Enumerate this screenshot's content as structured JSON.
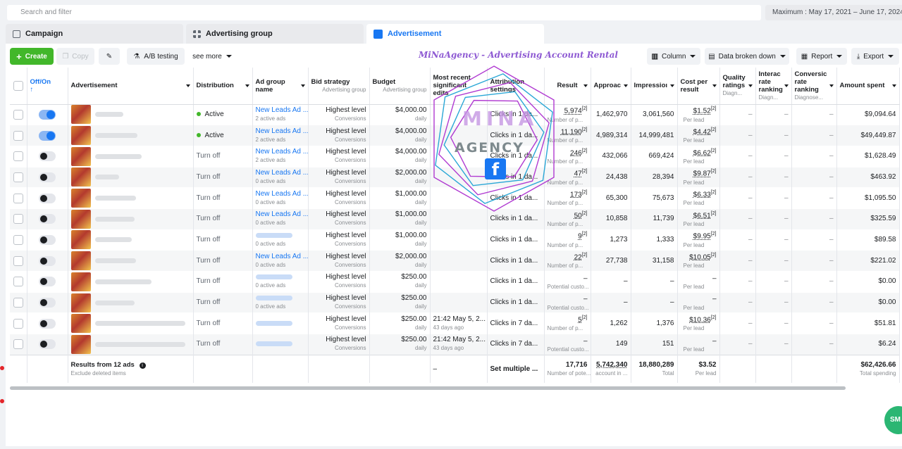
{
  "search": {
    "placeholder": "Search and filter"
  },
  "date_range": "Maximum : May 17, 2021 – June 17, 2024",
  "tabs": [
    {
      "label": "Campaign"
    },
    {
      "label": "Advertising group"
    },
    {
      "label": "Advertisement"
    }
  ],
  "toolbar": {
    "create": "Create",
    "copy": "Copy",
    "ab_testing": "A/B testing",
    "see_more": "see more",
    "brand": "MiNaAgency - Advertising Account Rental",
    "column": "Column",
    "breakdown": "Data broken down",
    "report": "Report",
    "export": "Export"
  },
  "headers": {
    "offon": "Off/On",
    "ad": "Advertisement",
    "distribution": "Distribution",
    "adgroup": "Ad group name",
    "bid": "Bid strategy",
    "bid_sub": "Advertising group",
    "budget": "Budget",
    "budget_sub": "Advertising group",
    "edits": "Most recent significant edits",
    "attribution": "Attribution settings",
    "result": "Result",
    "approach": "Approac",
    "impressions": "Impressioı",
    "cpr": "Cost per result",
    "quality": "Quality ratings",
    "quality_sub": "Diagn...",
    "interaction": "Interac rate ranking",
    "interaction_sub": "Diagn...",
    "conversion": "Conversic rate ranking",
    "conversion_sub": "Diagnose...",
    "spent": "Amount spent"
  },
  "rows": [
    {
      "on": true,
      "dist": "Active",
      "group": "New Leads Ad ...",
      "group_sub": "2 active ads",
      "bid": "Highest level",
      "bid_sub": "Conversions",
      "budget": "$4,000.00",
      "budget_sub": "daily",
      "edit": "",
      "edit_sub": "",
      "attr": "Clicks in 1 da...",
      "result": "5,974",
      "result_sup": "[2]",
      "result_sub": "Number of p...",
      "approach": "1,462,970",
      "impr": "3,061,560",
      "cpr": "$1.52",
      "cpr_sup": "[2]",
      "cpr_sub": "Per lead",
      "q": "–",
      "i": "–",
      "c": "–",
      "spent": "$9,094.64"
    },
    {
      "on": true,
      "dist": "Active",
      "group": "New Leads Ad ...",
      "group_sub": "2 active ads",
      "bid": "Highest level",
      "bid_sub": "Conversions",
      "budget": "$4,000.00",
      "budget_sub": "daily",
      "edit": "",
      "edit_sub": "",
      "attr": "Clicks in 1 da...",
      "result": "11,190",
      "result_sup": "[2]",
      "result_sub": "Number of p...",
      "approach": "4,989,314",
      "impr": "14,999,481",
      "cpr": "$4.42",
      "cpr_sup": "[2]",
      "cpr_sub": "Per lead",
      "q": "–",
      "i": "–",
      "c": "–",
      "spent": "$49,449.87"
    },
    {
      "on": false,
      "dist": "Turn off",
      "group": "New Leads Ad ...",
      "group_sub": "2 active ads",
      "bid": "Highest level",
      "bid_sub": "Conversions",
      "budget": "$4,000.00",
      "budget_sub": "daily",
      "edit": "",
      "edit_sub": "",
      "attr": "Clicks in 1 da...",
      "result": "246",
      "result_sup": "[2]",
      "result_sub": "Number of p...",
      "approach": "432,066",
      "impr": "669,424",
      "cpr": "$6.62",
      "cpr_sup": "[2]",
      "cpr_sub": "Per lead",
      "q": "–",
      "i": "–",
      "c": "–",
      "spent": "$1,628.49"
    },
    {
      "on": false,
      "dist": "Turn off",
      "group": "New Leads Ad ...",
      "group_sub": "0 active ads",
      "bid": "Highest level",
      "bid_sub": "Conversions",
      "budget": "$2,000.00",
      "budget_sub": "daily",
      "edit": "",
      "edit_sub": "",
      "attr": "Clicks in 1 da...",
      "result": "47",
      "result_sup": "[2]",
      "result_sub": "Number of p...",
      "approach": "24,438",
      "impr": "28,394",
      "cpr": "$9.87",
      "cpr_sup": "[2]",
      "cpr_sub": "Per lead",
      "q": "–",
      "i": "–",
      "c": "–",
      "spent": "$463.92"
    },
    {
      "on": false,
      "dist": "Turn off",
      "group": "New Leads Ad ...",
      "group_sub": "0 active ads",
      "bid": "Highest level",
      "bid_sub": "Conversions",
      "budget": "$1,000.00",
      "budget_sub": "daily",
      "edit": "",
      "edit_sub": "",
      "attr": "Clicks in 1 da...",
      "result": "173",
      "result_sup": "[2]",
      "result_sub": "Number of p...",
      "approach": "65,300",
      "impr": "75,673",
      "cpr": "$6.33",
      "cpr_sup": "[2]",
      "cpr_sub": "Per lead",
      "q": "–",
      "i": "–",
      "c": "–",
      "spent": "$1,095.50"
    },
    {
      "on": false,
      "dist": "Turn off",
      "group": "New Leads Ad ...",
      "group_sub": "0 active ads",
      "bid": "Highest level",
      "bid_sub": "Conversions",
      "budget": "$1,000.00",
      "budget_sub": "daily",
      "edit": "",
      "edit_sub": "",
      "attr": "Clicks in 1 da...",
      "result": "50",
      "result_sup": "[2]",
      "result_sub": "Number of p...",
      "approach": "10,858",
      "impr": "11,739",
      "cpr": "$6.51",
      "cpr_sup": "[2]",
      "cpr_sub": "Per lead",
      "q": "–",
      "i": "–",
      "c": "–",
      "spent": "$325.59"
    },
    {
      "on": false,
      "dist": "Turn off",
      "group": "",
      "group_sub": "0 active ads",
      "bid": "Highest level",
      "bid_sub": "Conversions",
      "budget": "$1,000.00",
      "budget_sub": "daily",
      "edit": "",
      "edit_sub": "",
      "attr": "Clicks in 1 da...",
      "result": "9",
      "result_sup": "[2]",
      "result_sub": "Number of p...",
      "approach": "1,273",
      "impr": "1,333",
      "cpr": "$9.95",
      "cpr_sup": "[2]",
      "cpr_sub": "Per lead",
      "q": "–",
      "i": "–",
      "c": "–",
      "spent": "$89.58"
    },
    {
      "on": false,
      "dist": "Turn off",
      "group": "New Leads Ad ...",
      "group_sub": "0 active ads",
      "bid": "Highest level",
      "bid_sub": "Conversions",
      "budget": "$2,000.00",
      "budget_sub": "daily",
      "edit": "",
      "edit_sub": "",
      "attr": "Clicks in 1 da...",
      "result": "22",
      "result_sup": "[2]",
      "result_sub": "Number of p...",
      "approach": "27,738",
      "impr": "31,158",
      "cpr": "$10.05",
      "cpr_sup": "[2]",
      "cpr_sub": "Per lead",
      "q": "–",
      "i": "–",
      "c": "–",
      "spent": "$221.02"
    },
    {
      "on": false,
      "dist": "Turn off",
      "group": "",
      "group_sub": "0 active ads",
      "bid": "Highest level",
      "bid_sub": "Conversions",
      "budget": "$250.00",
      "budget_sub": "daily",
      "edit": "",
      "edit_sub": "",
      "attr": "Clicks in 1 da...",
      "result": "–",
      "result_sup": "",
      "result_sub": "Potential custo...",
      "approach": "–",
      "impr": "–",
      "cpr": "–",
      "cpr_sup": "",
      "cpr_sub": "Per lead",
      "q": "–",
      "i": "–",
      "c": "–",
      "spent": "$0.00"
    },
    {
      "on": false,
      "dist": "Turn off",
      "group": "",
      "group_sub": "0 active ads",
      "bid": "Highest level",
      "bid_sub": "Conversions",
      "budget": "$250.00",
      "budget_sub": "daily",
      "edit": "",
      "edit_sub": "",
      "attr": "Clicks in 1 da...",
      "result": "–",
      "result_sup": "",
      "result_sub": "Potential custo...",
      "approach": "–",
      "impr": "–",
      "cpr": "–",
      "cpr_sup": "",
      "cpr_sub": "Per lead",
      "q": "–",
      "i": "–",
      "c": "–",
      "spent": "$0.00"
    },
    {
      "on": false,
      "dist": "Turn off",
      "group": "",
      "group_sub": "",
      "bid": "Highest level",
      "bid_sub": "Conversions",
      "budget": "$250.00",
      "budget_sub": "daily",
      "edit": "21:42 May 5, 2...",
      "edit_sub": "43 days ago",
      "attr": "Clicks in 7 da...",
      "result": "5",
      "result_sup": "[2]",
      "result_sub": "Number of p...",
      "approach": "1,262",
      "impr": "1,376",
      "cpr": "$10.36",
      "cpr_sup": "[2]",
      "cpr_sub": "Per lead",
      "q": "–",
      "i": "–",
      "c": "–",
      "spent": "$51.81"
    },
    {
      "on": false,
      "dist": "Turn off",
      "group": "",
      "group_sub": "",
      "bid": "Highest level",
      "bid_sub": "Conversions",
      "budget": "$250.00",
      "budget_sub": "daily",
      "edit": "21:42 May 5, 2...",
      "edit_sub": "43 days ago",
      "attr": "Clicks in 7 da...",
      "result": "–",
      "result_sup": "",
      "result_sub": "Potential custo...",
      "approach": "149",
      "impr": "151",
      "cpr": "–",
      "cpr_sup": "",
      "cpr_sub": "Per lead",
      "q": "–",
      "i": "–",
      "c": "–",
      "spent": "$6.24"
    }
  ],
  "totals": {
    "label": "Results from 12 ads",
    "sub": "Exclude deleted items",
    "edit": "–",
    "attr": "Set multiple ...",
    "result": "17,716",
    "result_sub": "Number of pote...",
    "approach": "5,742,340",
    "approach_sub": "account in ...",
    "impr": "18,880,289",
    "impr_sub": "Total",
    "cpr": "$3.52",
    "cpr_sub": "Per lead",
    "spent": "$62,426.66",
    "spent_sub": "Total spending"
  },
  "watermark": {
    "line1": "MINA",
    "line2": "AGENCY",
    "fb": "f"
  },
  "chat_label": "SM",
  "colors": {
    "accent": "#1877f2",
    "create": "#42b72a",
    "active": "#42b72a"
  }
}
